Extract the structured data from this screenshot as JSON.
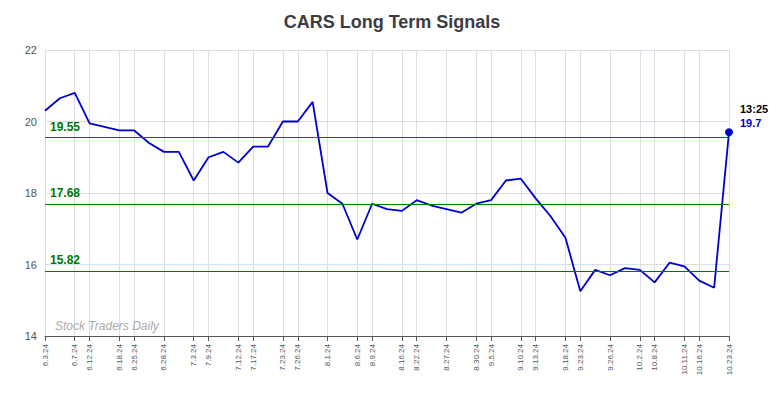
{
  "chart_data": {
    "type": "line",
    "title": "CARS Long Term Signals",
    "categories": [
      "6.3.24",
      null,
      "6.7.24",
      "6.12.24",
      null,
      "6.18.24",
      "6.25.24",
      null,
      "6.28.24",
      null,
      "7.3.24",
      "7.9.24",
      null,
      "7.12.24",
      "7.17.24",
      null,
      "7.23.24",
      "7.26.24",
      null,
      "8.1.24",
      null,
      "8.6.24",
      "8.9.24",
      null,
      "8.16.24",
      "8.22.24",
      null,
      "8.27.24",
      null,
      "8.30.24",
      "9.5.24",
      null,
      "9.10.24",
      "9.13.24",
      null,
      "9.18.24",
      "9.23.24",
      null,
      "9.26.24",
      null,
      "10.2.24",
      "10.8.24",
      null,
      "10.11.24",
      "10.16.24",
      null,
      "10.23.24"
    ],
    "values": [
      20.3,
      20.65,
      20.8,
      19.95,
      19.85,
      19.75,
      19.75,
      19.4,
      19.15,
      19.15,
      18.35,
      19.0,
      19.15,
      18.85,
      19.3,
      19.3,
      20.0,
      20.0,
      20.55,
      18.0,
      17.7,
      16.7,
      17.7,
      17.55,
      17.5,
      17.8,
      17.65,
      17.55,
      17.45,
      17.7,
      17.8,
      18.35,
      18.4,
      17.85,
      17.35,
      16.75,
      15.25,
      15.85,
      15.7,
      15.9,
      15.85,
      15.5,
      16.05,
      15.95,
      15.55,
      15.35,
      19.7
    ],
    "color": "#0000cc",
    "ylim": [
      14,
      22
    ],
    "yticks": [
      14,
      16,
      18,
      20,
      22
    ],
    "grid": true,
    "reference_lines": [
      {
        "value": 19.55,
        "label": "19.55",
        "color": "#007700"
      },
      {
        "value": 17.68,
        "label": "17.68",
        "color": "#007700"
      },
      {
        "value": 15.82,
        "label": "15.82",
        "color": "#007700"
      }
    ],
    "last_point": {
      "marker": "circle",
      "color": "#0000cc",
      "labels": [
        {
          "text": "13:25",
          "color": "#000000"
        },
        {
          "text": "19.7",
          "color": "#0000cc"
        }
      ]
    },
    "watermark": {
      "text": "Stock Traders Daily",
      "color": "#aaaaaa"
    }
  }
}
